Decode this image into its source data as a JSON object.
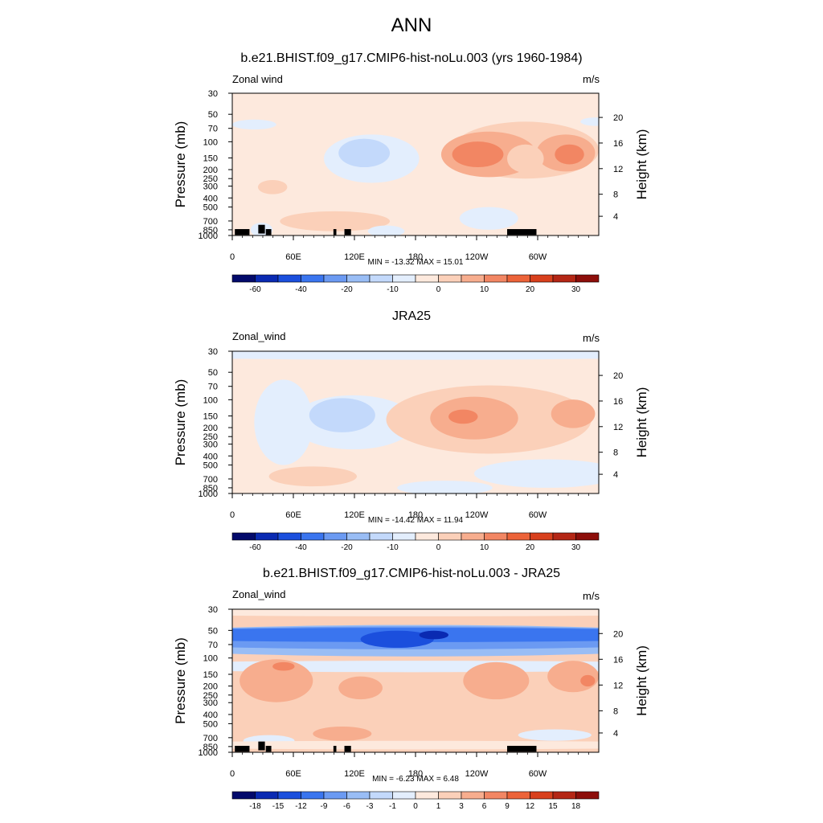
{
  "figure": {
    "title": "ANN",
    "colors_main": [
      "#030a6b",
      "#0a2ab2",
      "#1b4fdd",
      "#3a75ef",
      "#6b9af2",
      "#99bdf5",
      "#c3d9fb",
      "#e3eefd",
      "#fde9dd",
      "#fbd0b9",
      "#f7ad8e",
      "#f28663",
      "#ec6339",
      "#d8401d",
      "#b42615",
      "#8d0e0a"
    ],
    "colors_diff": [
      "#030a6b",
      "#0a2ab2",
      "#1b4fdd",
      "#3a75ef",
      "#6b9af2",
      "#99bdf5",
      "#c3d9fb",
      "#e3eefd",
      "#fde9dd",
      "#fbd0b9",
      "#f7ad8e",
      "#f28663",
      "#ec6339",
      "#d8401d",
      "#b42615",
      "#8d0e0a"
    ]
  },
  "chart_data": [
    {
      "type": "heatmap",
      "title": "b.e21.BHIST.f09_g17.CMIP6-hist-noLu.003 (yrs 1960-1984)",
      "left_label": "Zonal wind",
      "right_label": "m/s",
      "ylabel": "Pressure (mb)",
      "ylabel_right": "Height (km)",
      "x_ticks": [
        "0",
        "60E",
        "120E",
        "180",
        "120W",
        "60W"
      ],
      "y_ticks": [
        "30",
        "50",
        "70",
        "100",
        "150",
        "200",
        "250",
        "300",
        "400",
        "500",
        "700",
        "850",
        "1000"
      ],
      "height_ticks": [
        "20",
        "16",
        "12",
        "8",
        "4"
      ],
      "stats": "MIN = -13.32  MAX =  15.01",
      "colorbar_labels": [
        "-60",
        "-40",
        "-20",
        "-10",
        "0",
        "10",
        "20",
        "30"
      ],
      "stats_min": -13.32,
      "stats_max": 15.01
    },
    {
      "type": "heatmap",
      "title": "JRA25",
      "left_label": "Zonal_wind",
      "right_label": "m/s",
      "ylabel": "Pressure (mb)",
      "ylabel_right": "Height (km)",
      "x_ticks": [
        "0",
        "60E",
        "120E",
        "180",
        "120W",
        "60W"
      ],
      "y_ticks": [
        "30",
        "50",
        "70",
        "100",
        "150",
        "200",
        "250",
        "300",
        "400",
        "500",
        "700",
        "850",
        "1000"
      ],
      "height_ticks": [
        "20",
        "16",
        "12",
        "8",
        "4"
      ],
      "stats": "MIN = -14.42  MAX =  11.94",
      "colorbar_labels": [
        "-60",
        "-40",
        "-20",
        "-10",
        "0",
        "10",
        "20",
        "30"
      ],
      "stats_min": -14.42,
      "stats_max": 11.94
    },
    {
      "type": "heatmap",
      "title": "b.e21.BHIST.f09_g17.CMIP6-hist-noLu.003 - JRA25",
      "left_label": "Zonal_wind",
      "right_label": "m/s",
      "ylabel": "Pressure (mb)",
      "ylabel_right": "Height (km)",
      "x_ticks": [
        "0",
        "60E",
        "120E",
        "180",
        "120W",
        "60W"
      ],
      "y_ticks": [
        "30",
        "50",
        "70",
        "100",
        "150",
        "200",
        "250",
        "300",
        "400",
        "500",
        "700",
        "850",
        "1000"
      ],
      "height_ticks": [
        "20",
        "16",
        "12",
        "8",
        "4"
      ],
      "stats": "MIN = -6.23  MAX =  6.48",
      "colorbar_labels": [
        "-18",
        "-15",
        "-12",
        "-9",
        "-6",
        "-3",
        "-1",
        "0",
        "1",
        "3",
        "6",
        "9",
        "12",
        "15",
        "18"
      ],
      "stats_min": -6.23,
      "stats_max": 6.48
    }
  ]
}
